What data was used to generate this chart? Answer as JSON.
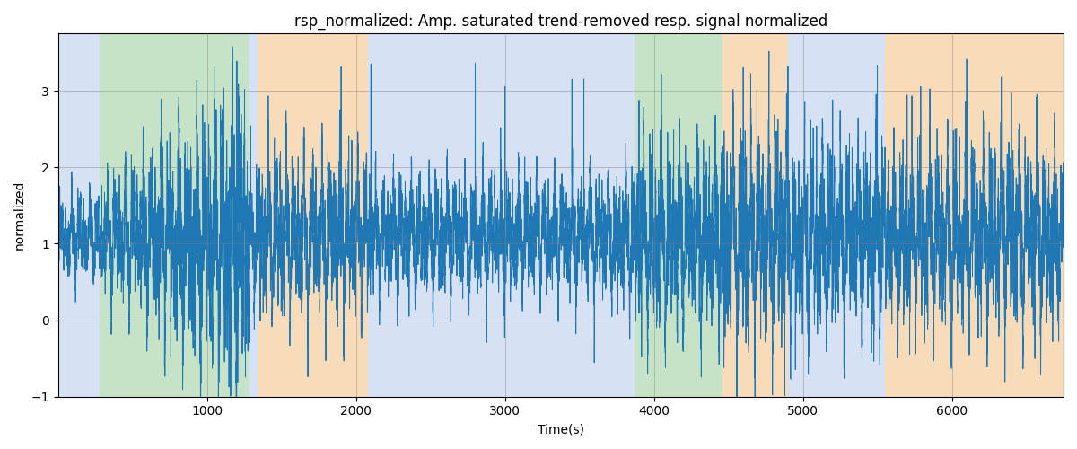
{
  "title": "rsp_normalized: Amp. saturated trend-removed resp. signal normalized",
  "xlabel": "Time(s)",
  "ylabel": "normalized",
  "xlim": [
    0,
    6750
  ],
  "ylim": [
    -1,
    3.75
  ],
  "yticks": [
    -1,
    0,
    1,
    2,
    3
  ],
  "xticks": [
    1000,
    2000,
    3000,
    4000,
    5000,
    6000
  ],
  "line_color": "#1f77b4",
  "line_width": 0.7,
  "bg_regions": [
    {
      "start": 0,
      "end": 280,
      "color": "#aec6e8",
      "alpha": 0.5
    },
    {
      "start": 280,
      "end": 1280,
      "color": "#90c990",
      "alpha": 0.5
    },
    {
      "start": 1280,
      "end": 1340,
      "color": "#aec6e8",
      "alpha": 0.5
    },
    {
      "start": 1340,
      "end": 2080,
      "color": "#f4c48a",
      "alpha": 0.6
    },
    {
      "start": 2080,
      "end": 3750,
      "color": "#aec6e8",
      "alpha": 0.5
    },
    {
      "start": 3750,
      "end": 3830,
      "color": "#aec6e8",
      "alpha": 0.5
    },
    {
      "start": 3830,
      "end": 3870,
      "color": "#aec6e8",
      "alpha": 0.5
    },
    {
      "start": 3870,
      "end": 4460,
      "color": "#90c990",
      "alpha": 0.5
    },
    {
      "start": 4460,
      "end": 4530,
      "color": "#f4c48a",
      "alpha": 0.6
    },
    {
      "start": 4530,
      "end": 4900,
      "color": "#f4c48a",
      "alpha": 0.6
    },
    {
      "start": 4900,
      "end": 5550,
      "color": "#aec6e8",
      "alpha": 0.5
    },
    {
      "start": 5550,
      "end": 6750,
      "color": "#f4c48a",
      "alpha": 0.6
    }
  ],
  "seed": 42,
  "n_points": 13500,
  "t_start": 0,
  "t_end": 6750,
  "figsize": [
    12,
    5
  ],
  "dpi": 100,
  "title_fontsize": 12
}
